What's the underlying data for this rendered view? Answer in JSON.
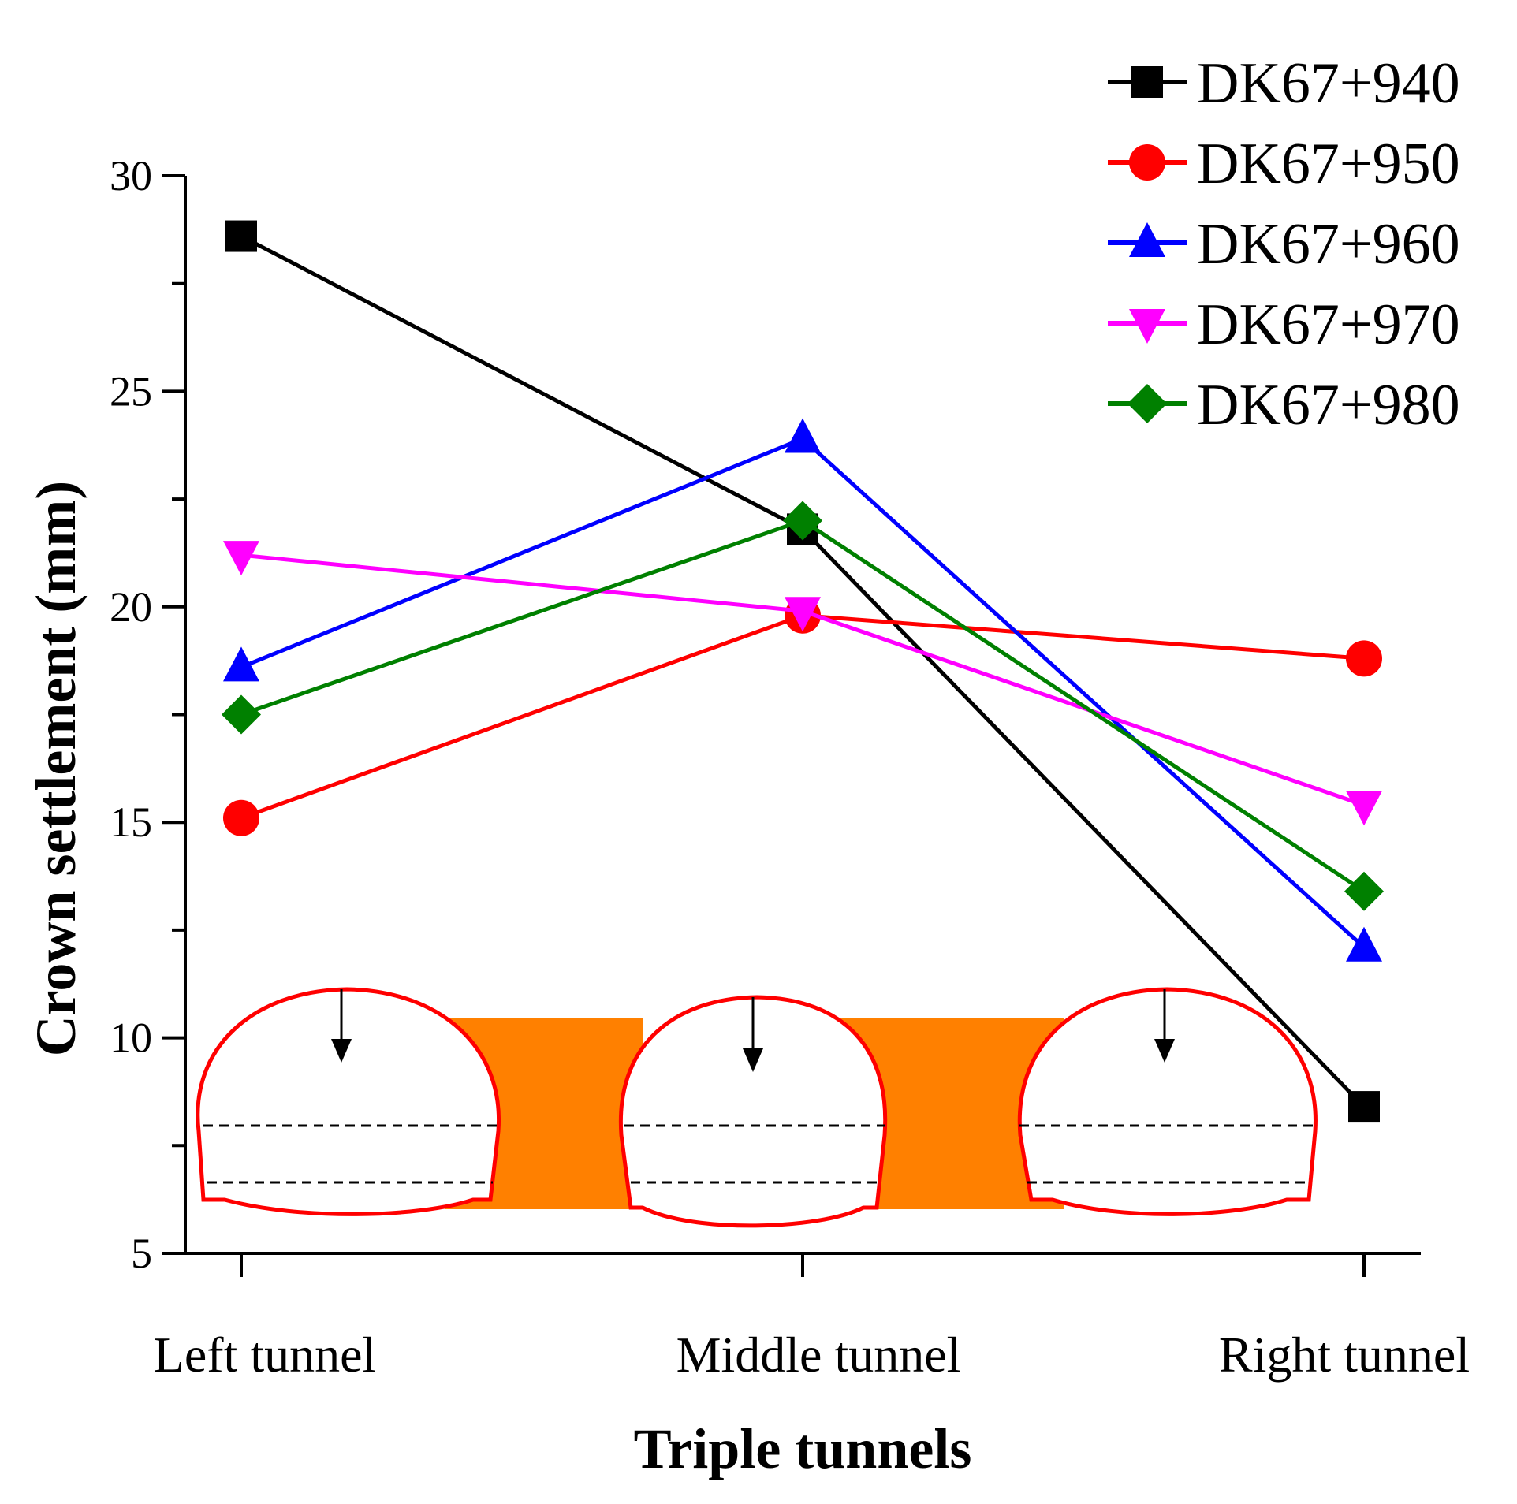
{
  "chart_data": {
    "type": "line",
    "title": "",
    "xlabel": "Triple tunnels",
    "ylabel": "Crown settlement (mm)",
    "categories": [
      "Left tunnel",
      "Middle tunnel",
      "Right tunnel"
    ],
    "ylim": [
      5,
      30
    ],
    "yticks": [
      5,
      10,
      15,
      20,
      25,
      30
    ],
    "legend_position": "top-right",
    "grid": false,
    "series": [
      {
        "name": "DK67+940",
        "color": "#000000",
        "marker": "square",
        "values": [
          28.6,
          21.8,
          8.4
        ]
      },
      {
        "name": "DK67+950",
        "color": "#ff0000",
        "marker": "circle",
        "values": [
          15.1,
          19.8,
          18.8
        ]
      },
      {
        "name": "DK67+960",
        "color": "#0000ff",
        "marker": "triangle-up",
        "values": [
          18.6,
          23.9,
          12.1
        ]
      },
      {
        "name": "DK67+970",
        "color": "#ff00ff",
        "marker": "triangle-down",
        "values": [
          21.2,
          19.9,
          15.4
        ]
      },
      {
        "name": "DK67+980",
        "color": "#008000",
        "marker": "diamond",
        "values": [
          17.5,
          22.0,
          13.4
        ]
      }
    ]
  },
  "diagram": {
    "tunnels": [
      "left-tunnel",
      "middle-tunnel",
      "right-tunnel"
    ],
    "outline_color": "#ff0000",
    "fill_color": "#ff8000",
    "arrow_color": "#000000"
  }
}
